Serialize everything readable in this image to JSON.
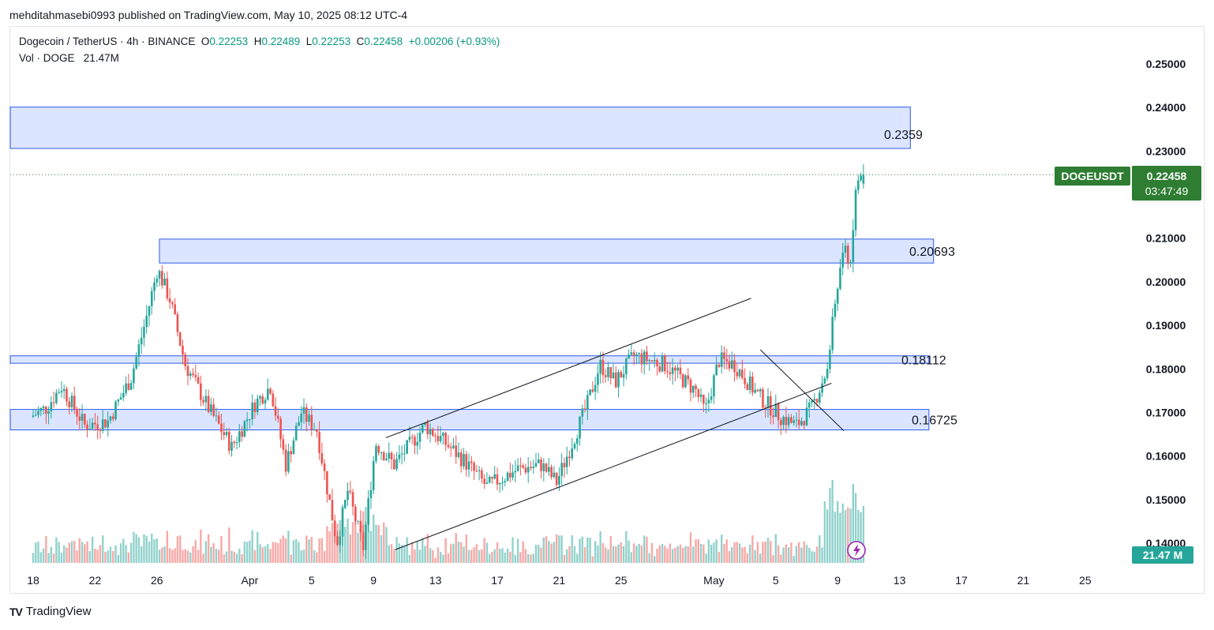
{
  "header": {
    "publisher_line": "mehditahmasebi0993 published on TradingView.com, May 10, 2025 08:12 UTC-4"
  },
  "legend": {
    "symbol_line": "Dogecoin / TetherUS · 4h · BINANCE",
    "o_label": "O",
    "o_value": "0.22253",
    "h_label": "H",
    "h_value": "0.22489",
    "l_label": "L",
    "l_value": "0.22253",
    "c_label": "C",
    "c_value": "0.22458",
    "change": "+0.00206 (+0.93%)",
    "vol_label": "Vol · DOGE",
    "vol_value": "21.47M"
  },
  "price_badge": {
    "symbol": "DOGEUSDT",
    "price": "0.22458",
    "countdown": "03:47:49",
    "volume": "21.47 M"
  },
  "footer": {
    "brand": "TradingView"
  },
  "colors": {
    "up": "#26a69a",
    "down": "#ef5350",
    "badge": "#2e7d32",
    "zone_fill": "#d5e1ff",
    "zone_border": "#2f5bea"
  },
  "chart_data": {
    "type": "candlestick",
    "symbol": "DOGEUSDT",
    "interval": "4h",
    "ylim": [
      0.137,
      0.256
    ],
    "y_ticks": [
      0.25,
      0.24,
      0.23,
      0.21,
      0.2,
      0.19,
      0.18,
      0.17,
      0.16,
      0.15,
      0.14
    ],
    "y_tick_labels": [
      "0.25000",
      "0.24000",
      "0.23000",
      "0.21000",
      "0.20000",
      "0.19000",
      "0.18000",
      "0.17000",
      "0.16000",
      "0.15000",
      "0.14000"
    ],
    "x_ticks": [
      {
        "label": "18",
        "day": 0
      },
      {
        "label": "22",
        "day": 4
      },
      {
        "label": "26",
        "day": 8
      },
      {
        "label": "Apr",
        "day": 14
      },
      {
        "label": "5",
        "day": 18
      },
      {
        "label": "9",
        "day": 22
      },
      {
        "label": "13",
        "day": 26
      },
      {
        "label": "17",
        "day": 30
      },
      {
        "label": "21",
        "day": 34
      },
      {
        "label": "25",
        "day": 38
      },
      {
        "label": "May",
        "day": 44
      },
      {
        "label": "5",
        "day": 48
      },
      {
        "label": "9",
        "day": 52
      },
      {
        "label": "13",
        "day": 56
      },
      {
        "label": "17",
        "day": 60
      },
      {
        "label": "21",
        "day": 64
      },
      {
        "label": "25",
        "day": 68
      }
    ],
    "price_path": [
      [
        0,
        0.169
      ],
      [
        1,
        0.171
      ],
      [
        2,
        0.176
      ],
      [
        3.5,
        0.167
      ],
      [
        5,
        0.168
      ],
      [
        6.5,
        0.178
      ],
      [
        7.5,
        0.192
      ],
      [
        8.2,
        0.203
      ],
      [
        9,
        0.196
      ],
      [
        10,
        0.181
      ],
      [
        11.5,
        0.171
      ],
      [
        13,
        0.162
      ],
      [
        14.5,
        0.172
      ],
      [
        15.5,
        0.176
      ],
      [
        16.5,
        0.158
      ],
      [
        17.5,
        0.17
      ],
      [
        18.5,
        0.166
      ],
      [
        19.8,
        0.14
      ],
      [
        20.5,
        0.152
      ],
      [
        21.5,
        0.139
      ],
      [
        22.3,
        0.163
      ],
      [
        23.5,
        0.158
      ],
      [
        25.5,
        0.167
      ],
      [
        26.5,
        0.164
      ],
      [
        28,
        0.159
      ],
      [
        29.5,
        0.153
      ],
      [
        31.5,
        0.157
      ],
      [
        33,
        0.158
      ],
      [
        34,
        0.154
      ],
      [
        35,
        0.163
      ],
      [
        36,
        0.172
      ],
      [
        36.8,
        0.181
      ],
      [
        37.8,
        0.177
      ],
      [
        39,
        0.183
      ],
      [
        41,
        0.181
      ],
      [
        43,
        0.175
      ],
      [
        43.6,
        0.17
      ],
      [
        44.5,
        0.182
      ],
      [
        45.5,
        0.181
      ],
      [
        47,
        0.174
      ],
      [
        48.5,
        0.169
      ],
      [
        49.5,
        0.167
      ],
      [
        50.5,
        0.171
      ],
      [
        51.5,
        0.18
      ],
      [
        52,
        0.195
      ],
      [
        52.5,
        0.207
      ],
      [
        53,
        0.205
      ],
      [
        53.4,
        0.223
      ],
      [
        53.7,
        0.2246
      ]
    ],
    "last": {
      "open": 0.22253,
      "high": 0.22489,
      "low": 0.22253,
      "close": 0.22458,
      "change": 0.00206,
      "change_pct": 0.93,
      "volume_m": 21.47
    },
    "zones": [
      {
        "low": 0.2306,
        "high": 0.2401,
        "label": "0.2359",
        "end_day": 56.7
      },
      {
        "low": 0.2043,
        "high": 0.2098,
        "label": "0.20693",
        "end_day": 58.2
      },
      {
        "low": 0.1813,
        "high": 0.183,
        "label": "0.18112",
        "end_day": 57.9
      },
      {
        "low": 0.166,
        "high": 0.1707,
        "label": "0.16725",
        "end_day": 57.9
      }
    ],
    "trendlines": [
      {
        "from": [
          22.8,
          0.1642
        ],
        "to": [
          46.4,
          0.1962
        ]
      },
      {
        "from": [
          23.4,
          0.1385
        ],
        "to": [
          51.6,
          0.1767
        ]
      },
      {
        "from": [
          47.0,
          0.1844
        ],
        "to": [
          52.4,
          0.1658
        ]
      }
    ],
    "grid": false,
    "legend_position": "top-left"
  }
}
